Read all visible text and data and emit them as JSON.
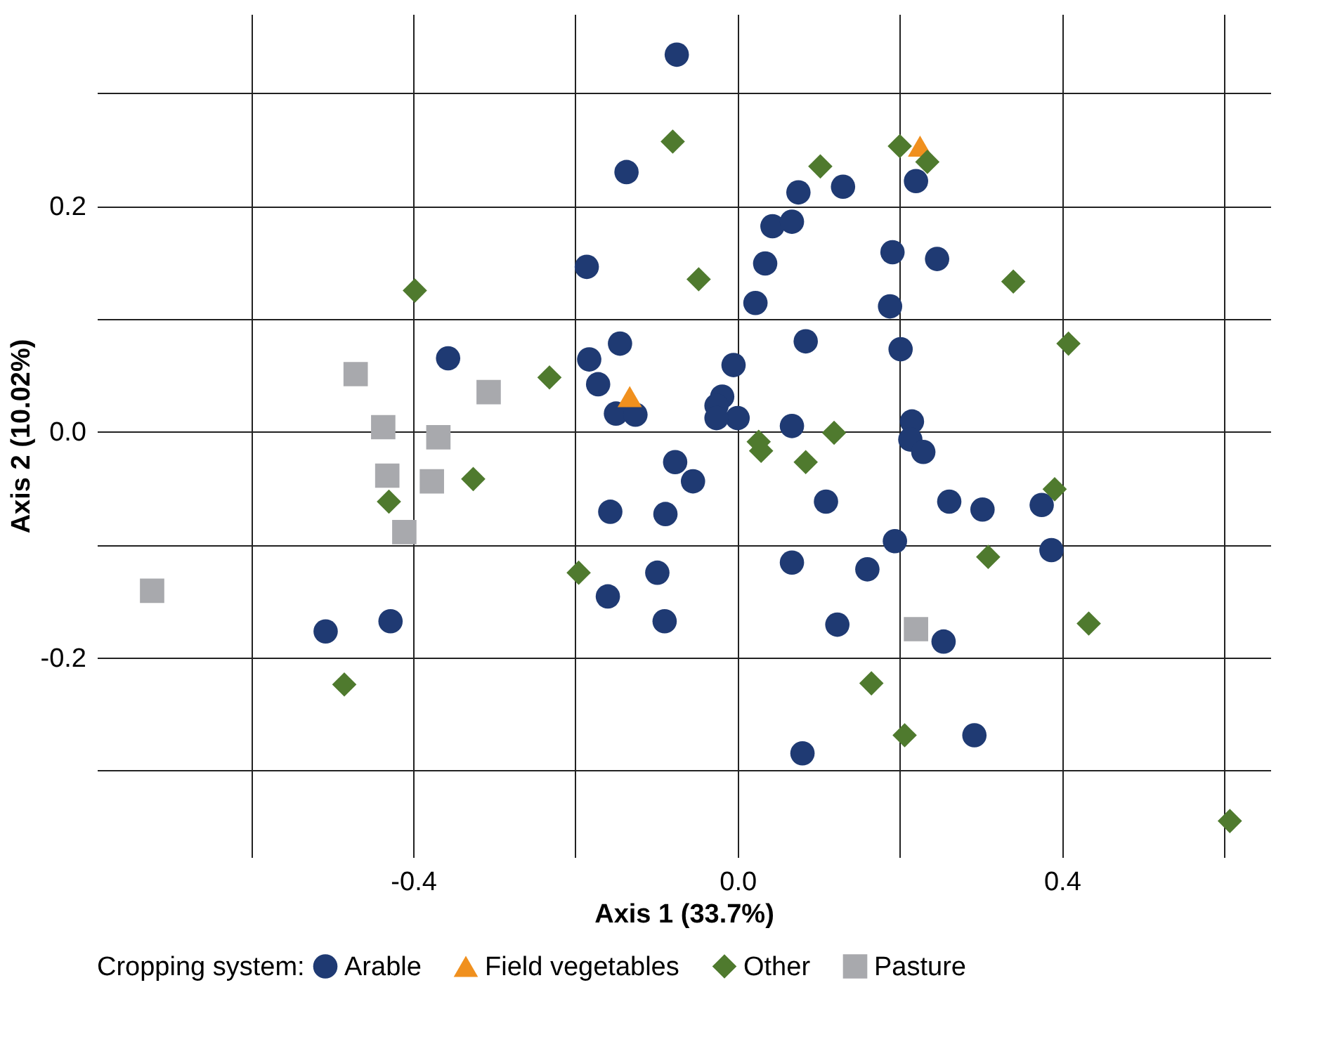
{
  "chart_data": {
    "type": "scatter",
    "xlabel": "Axis 1 (33.7%)",
    "ylabel": "Axis 2 (10.02%)",
    "legend_title": "Cropping system:",
    "xlim": [
      -0.79,
      0.657
    ],
    "ylim": [
      -0.377,
      0.37
    ],
    "xticks": [
      {
        "value": -0.6,
        "label": null
      },
      -0.4,
      {
        "value": -0.2,
        "label": null
      },
      {
        "value": 0,
        "label": "0.0"
      },
      {
        "value": 0.2,
        "label": null
      },
      0.4,
      {
        "value": 0.6,
        "label": null
      }
    ],
    "yticks": [
      {
        "value": -0.3,
        "label": null
      },
      -0.2,
      {
        "value": -0.1,
        "label": null
      },
      {
        "value": 0,
        "label": "0.0"
      },
      {
        "value": 0.1,
        "label": null
      },
      0.2,
      {
        "value": 0.3,
        "label": null
      }
    ],
    "grid": true,
    "legend": "bottom",
    "series": [
      {
        "name": "Arable",
        "color": "#1f3a73",
        "marker": "circle",
        "x": [
          -0.075,
          -0.137,
          0.075,
          0.13,
          0.22,
          -0.186,
          0.043,
          0.067,
          0.034,
          0.191,
          0.246,
          0.022,
          0.084,
          0.188,
          0.201,
          -0.357,
          -0.183,
          -0.145,
          -0.172,
          -0.15,
          -0.126,
          -0.005,
          -0.019,
          -0.026,
          0.0,
          -0.026,
          0.067,
          0.215,
          0.213,
          0.229,
          -0.077,
          -0.055,
          -0.157,
          -0.089,
          0.109,
          0.261,
          0.302,
          0.375,
          0.387,
          0.194,
          -0.099,
          0.067,
          0.16,
          -0.16,
          -0.09,
          0.123,
          0.254,
          -0.508,
          -0.428,
          0.08,
          0.292
        ],
        "values": [
          0.334,
          0.23,
          0.212,
          0.217,
          0.222,
          0.146,
          0.182,
          0.186,
          0.149,
          0.159,
          0.153,
          0.114,
          0.08,
          0.111,
          0.073,
          0.065,
          0.064,
          0.078,
          0.042,
          0.016,
          0.015,
          0.059,
          0.031,
          0.023,
          0.012,
          0.012,
          0.005,
          0.009,
          -0.007,
          -0.018,
          -0.027,
          -0.044,
          -0.071,
          -0.073,
          -0.062,
          -0.062,
          -0.069,
          -0.065,
          -0.105,
          -0.097,
          -0.125,
          -0.116,
          -0.122,
          -0.146,
          -0.168,
          -0.171,
          -0.186,
          -0.177,
          -0.168,
          -0.285,
          -0.269
        ]
      },
      {
        "name": "Field vegetables",
        "color": "#f0901e",
        "marker": "triangle",
        "x": [
          0.225,
          -0.133
        ],
        "values": [
          0.253,
          0.031
        ]
      },
      {
        "name": "Other",
        "color": "#4f7a2e",
        "marker": "diamond",
        "x": [
          -0.08,
          0.2,
          0.234,
          0.102,
          -0.048,
          0.34,
          -0.398,
          0.408,
          -0.232,
          0.026,
          0.029,
          0.119,
          0.084,
          -0.326,
          -0.43,
          0.391,
          0.309,
          -0.196,
          0.433,
          -0.485,
          0.165,
          0.206,
          0.607
        ],
        "values": [
          0.257,
          0.253,
          0.239,
          0.235,
          0.135,
          0.133,
          0.125,
          0.078,
          0.048,
          -0.009,
          -0.017,
          -0.001,
          -0.027,
          -0.042,
          -0.062,
          -0.051,
          -0.111,
          -0.125,
          -0.17,
          -0.224,
          -0.223,
          -0.269,
          -0.345
        ]
      },
      {
        "name": "Pasture",
        "color": "#a8a9ad",
        "marker": "square",
        "x": [
          -0.471,
          -0.307,
          -0.437,
          -0.369,
          -0.432,
          -0.377,
          -0.411,
          -0.722,
          0.22
        ],
        "values": [
          0.051,
          0.035,
          0.004,
          -0.005,
          -0.039,
          -0.044,
          -0.089,
          -0.141,
          -0.175
        ]
      }
    ]
  }
}
